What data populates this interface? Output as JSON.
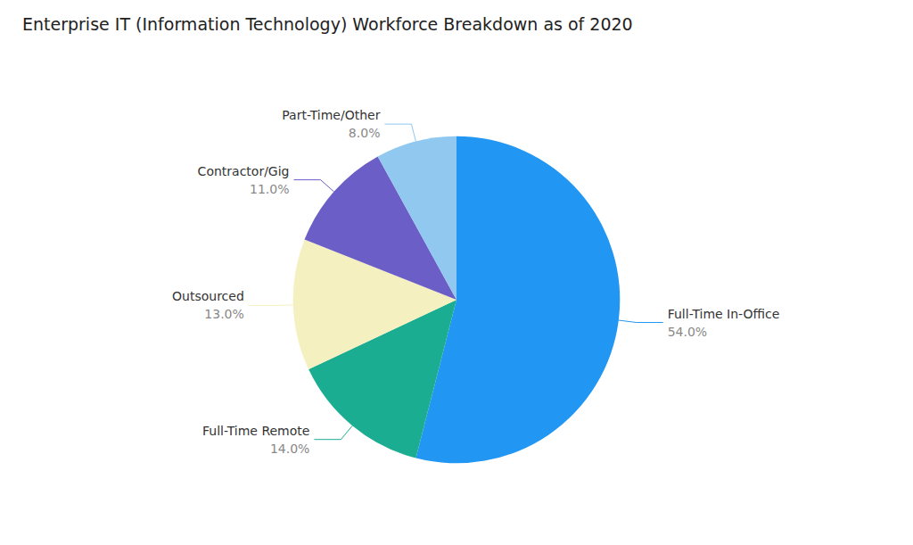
{
  "chart_data": {
    "type": "pie",
    "title": "Enterprise IT (Information Technology) Workforce Breakdown as of 2020",
    "categories": [
      "Full-Time In-Office",
      "Full-Time Remote",
      "Outsourced",
      "Contractor/Gig",
      "Part-Time/Other"
    ],
    "values": [
      54.0,
      14.0,
      13.0,
      11.0,
      8.0
    ],
    "value_labels": [
      "54.0%",
      "14.0%",
      "13.0%",
      "11.0%",
      "8.0%"
    ],
    "colors": [
      "#2196F3",
      "#1AAD91",
      "#F5F0C0",
      "#6B5EC7",
      "#90C8F0"
    ],
    "data_labels": true
  }
}
